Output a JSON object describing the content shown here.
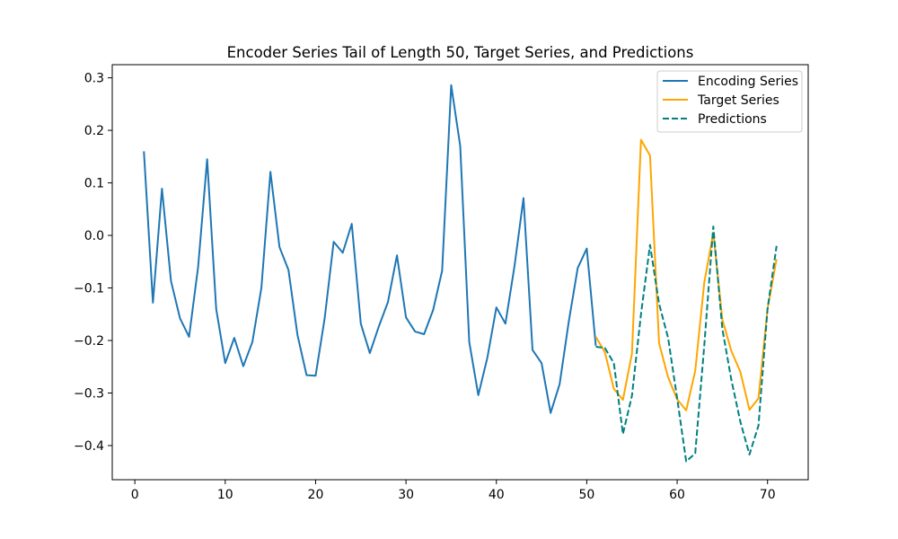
{
  "chart_data": {
    "type": "line",
    "title": "Encoder Series Tail of Length 50, Target Series, and Predictions",
    "xlabel": "",
    "ylabel": "",
    "xlim": [
      -2.5,
      74.5
    ],
    "ylim": [
      -0.465,
      0.325
    ],
    "xticks": [
      0,
      10,
      20,
      30,
      40,
      50,
      60,
      70
    ],
    "yticks": [
      -0.4,
      -0.3,
      -0.2,
      -0.1,
      0.0,
      0.1,
      0.2,
      0.3
    ],
    "ytick_labels": [
      "−0.4",
      "−0.3",
      "−0.2",
      "−0.1",
      "0.0",
      "0.1",
      "0.2",
      "0.3"
    ],
    "grid": false,
    "legend_position": "top-right",
    "series": [
      {
        "name": "Encoding Series",
        "color": "#1f77b4",
        "style": "solid",
        "x": [
          1,
          2,
          3,
          4,
          5,
          6,
          7,
          8,
          9,
          10,
          11,
          12,
          13,
          14,
          15,
          16,
          17,
          18,
          19,
          20,
          21,
          22,
          23,
          24,
          25,
          26,
          27,
          28,
          29,
          30,
          31,
          32,
          33,
          34,
          35,
          36,
          37,
          38,
          39,
          40,
          41,
          42,
          43,
          44,
          45,
          46,
          47,
          48,
          49,
          50,
          51
        ],
        "y": [
          0.16,
          -0.128,
          0.089,
          -0.087,
          -0.158,
          -0.193,
          -0.06,
          0.145,
          -0.14,
          -0.243,
          -0.195,
          -0.249,
          -0.203,
          -0.1,
          0.121,
          -0.022,
          -0.066,
          -0.19,
          -0.266,
          -0.267,
          -0.158,
          -0.012,
          -0.033,
          0.022,
          -0.168,
          -0.224,
          -0.173,
          -0.127,
          -0.038,
          -0.156,
          -0.183,
          -0.188,
          -0.142,
          -0.067,
          0.286,
          0.17,
          -0.203,
          -0.304,
          -0.233,
          -0.137,
          -0.168,
          -0.059,
          0.071,
          -0.218,
          -0.243,
          -0.338,
          -0.283,
          -0.165,
          -0.062,
          -0.025,
          -0.21
        ]
      },
      {
        "name": "Target Series",
        "color": "#ffa500",
        "style": "solid",
        "x": [
          51,
          52,
          53,
          54,
          55,
          56,
          57,
          58,
          59,
          60,
          61,
          62,
          63,
          64,
          65,
          66,
          67,
          68,
          69,
          70,
          71
        ],
        "y": [
          -0.193,
          -0.222,
          -0.292,
          -0.313,
          -0.225,
          0.182,
          0.152,
          -0.205,
          -0.27,
          -0.312,
          -0.333,
          -0.258,
          -0.09,
          0.005,
          -0.16,
          -0.22,
          -0.26,
          -0.332,
          -0.31,
          -0.14,
          -0.045
        ]
      },
      {
        "name": "Predictions",
        "color": "#008080",
        "style": "dashed",
        "x": [
          51,
          52,
          53,
          54,
          55,
          56,
          57,
          58,
          59,
          60,
          61,
          62,
          63,
          64,
          65,
          66,
          67,
          68,
          69,
          70,
          71
        ],
        "y": [
          -0.212,
          -0.214,
          -0.243,
          -0.378,
          -0.305,
          -0.15,
          -0.018,
          -0.13,
          -0.195,
          -0.31,
          -0.43,
          -0.415,
          -0.21,
          0.017,
          -0.178,
          -0.275,
          -0.355,
          -0.417,
          -0.362,
          -0.14,
          -0.02
        ]
      }
    ]
  }
}
